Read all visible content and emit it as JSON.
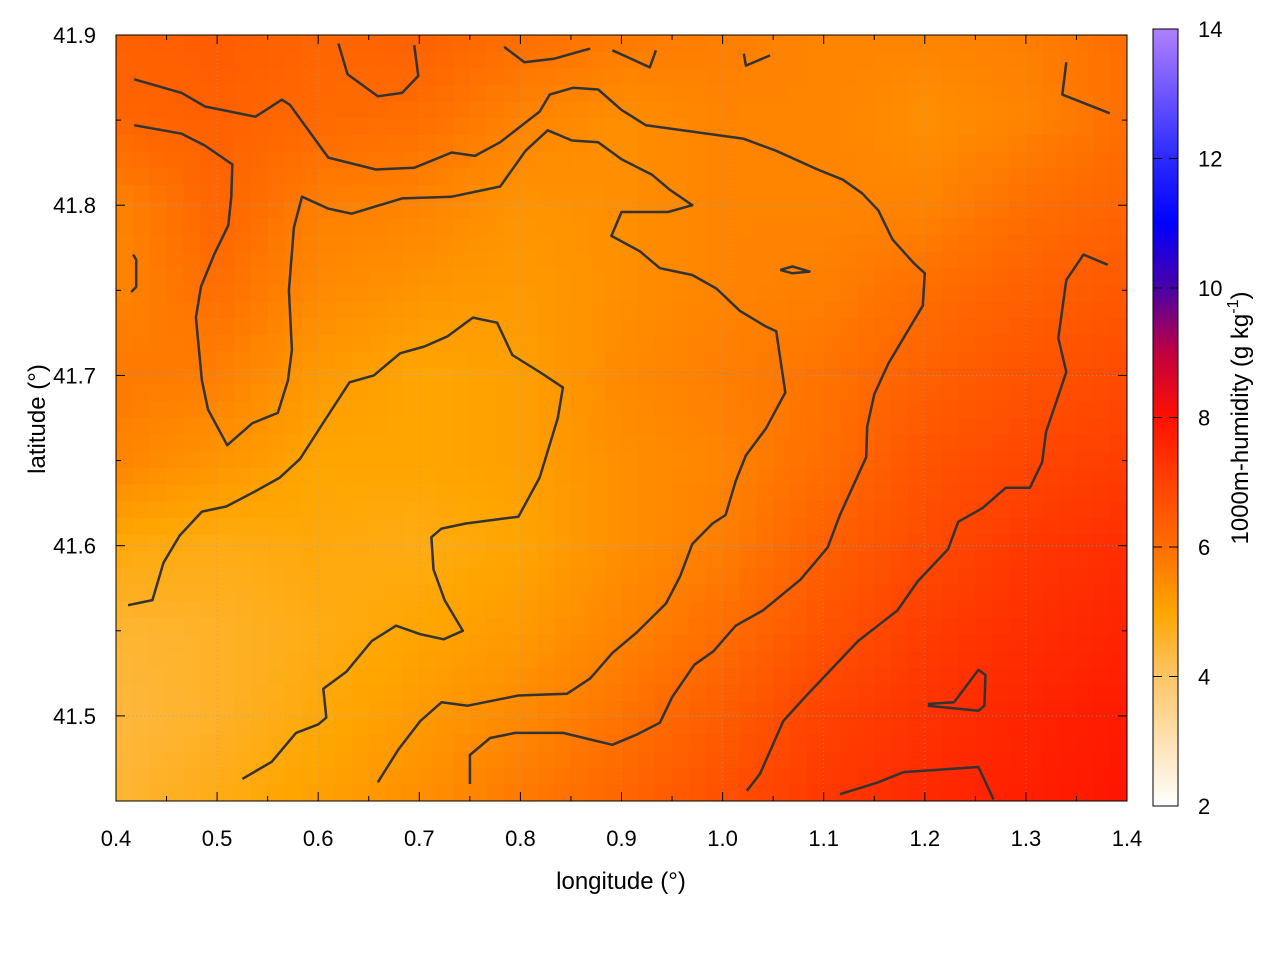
{
  "chart_data": {
    "type": "heatmap",
    "title": "",
    "xlabel": "longitude (°)",
    "ylabel": "latitude (°)",
    "colorbar_label": "1000m-humidity (g kg",
    "colorbar_label_sup": "-1",
    "colorbar_label_end": ")",
    "xlim": [
      0.4,
      1.4
    ],
    "ylim": [
      41.45,
      41.9
    ],
    "clim": [
      2,
      14
    ],
    "grid": true,
    "x_ticks": [
      "0.4",
      "0.5",
      "0.6",
      "0.7",
      "0.8",
      "0.9",
      "1.0",
      "1.1",
      "1.2",
      "1.3",
      "1.4"
    ],
    "y_ticks": [
      "41.5",
      "41.6",
      "41.7",
      "41.8",
      "41.9"
    ],
    "c_ticks": [
      "2",
      "4",
      "6",
      "8",
      "10",
      "12",
      "14"
    ],
    "palette": [
      {
        "v": 2,
        "c": "#ffffff"
      },
      {
        "v": 4,
        "c": "#fdc566"
      },
      {
        "v": 5,
        "c": "#ffa500"
      },
      {
        "v": 6,
        "c": "#ff6e00"
      },
      {
        "v": 7,
        "c": "#ff4200"
      },
      {
        "v": 8,
        "c": "#ff1000"
      },
      {
        "v": 9,
        "c": "#c00040"
      },
      {
        "v": 10,
        "c": "#4a00a8"
      },
      {
        "v": 11,
        "c": "#0000ff"
      },
      {
        "v": 12,
        "c": "#2a2aff"
      },
      {
        "v": 14,
        "c": "#b080ff"
      }
    ],
    "grid_lon": [
      0.4,
      0.5,
      0.6,
      0.7,
      0.8,
      0.9,
      1.0,
      1.1,
      1.2,
      1.3,
      1.4
    ],
    "grid_lat": [
      41.9,
      41.85,
      41.8,
      41.75,
      41.7,
      41.65,
      41.6,
      41.55,
      41.5,
      41.45
    ],
    "values": [
      [
        6.3,
        6.4,
        6.2,
        6.3,
        6.0,
        5.8,
        5.7,
        5.6,
        5.6,
        5.7,
        6.0
      ],
      [
        6.2,
        6.3,
        6.1,
        6.0,
        5.6,
        5.4,
        5.6,
        5.6,
        5.4,
        5.6,
        6.0
      ],
      [
        5.6,
        6.2,
        5.7,
        5.6,
        5.3,
        5.4,
        5.6,
        5.6,
        5.6,
        6.0,
        6.2
      ],
      [
        5.6,
        6.0,
        5.5,
        5.3,
        5.2,
        5.4,
        5.6,
        5.7,
        6.0,
        6.3,
        6.5
      ],
      [
        5.8,
        5.7,
        5.2,
        5.0,
        5.1,
        5.5,
        5.7,
        5.9,
        6.3,
        6.6,
        6.8
      ],
      [
        5.6,
        5.3,
        5.0,
        5.0,
        5.1,
        5.4,
        5.6,
        6.0,
        6.6,
        6.9,
        7.1
      ],
      [
        4.9,
        4.8,
        4.9,
        4.8,
        5.0,
        5.4,
        5.7,
        6.3,
        6.8,
        7.2,
        7.4
      ],
      [
        4.5,
        4.6,
        4.8,
        5.0,
        5.2,
        5.6,
        6.0,
        6.6,
        7.1,
        7.4,
        7.6
      ],
      [
        4.4,
        4.6,
        4.9,
        5.2,
        5.5,
        5.9,
        6.4,
        7.0,
        7.3,
        7.6,
        7.8
      ],
      [
        4.5,
        4.8,
        5.1,
        5.4,
        5.8,
        6.2,
        6.7,
        7.2,
        7.5,
        7.7,
        7.9
      ]
    ],
    "contour_color": "#333333",
    "contours": [
      [
        [
          0.418,
          41.874
        ],
        [
          0.465,
          41.866
        ],
        [
          0.488,
          41.858
        ],
        [
          0.538,
          41.852
        ],
        [
          0.564,
          41.862
        ],
        [
          0.572,
          41.859
        ],
        [
          0.61,
          41.828
        ],
        [
          0.657,
          41.821
        ],
        [
          0.695,
          41.822
        ],
        [
          0.732,
          41.831
        ],
        [
          0.755,
          41.829
        ],
        [
          0.78,
          41.837
        ],
        [
          0.819,
          41.855
        ],
        [
          0.829,
          41.865
        ],
        [
          0.852,
          41.869
        ],
        [
          0.877,
          41.868
        ],
        [
          0.9,
          41.856
        ],
        [
          0.924,
          41.847
        ],
        [
          1.021,
          41.839
        ],
        [
          1.053,
          41.832
        ],
        [
          1.094,
          41.821
        ],
        [
          1.119,
          41.815
        ],
        [
          1.138,
          41.807
        ],
        [
          1.154,
          41.797
        ],
        [
          1.168,
          41.78
        ],
        [
          1.189,
          41.766
        ],
        [
          1.2,
          41.76
        ],
        [
          1.198,
          41.741
        ],
        [
          1.185,
          41.728
        ],
        [
          1.164,
          41.707
        ],
        [
          1.15,
          41.689
        ],
        [
          1.143,
          41.67
        ],
        [
          1.142,
          41.652
        ],
        [
          1.116,
          41.618
        ],
        [
          1.104,
          41.599
        ],
        [
          1.077,
          41.58
        ],
        [
          1.04,
          41.562
        ],
        [
          1.013,
          41.553
        ],
        [
          0.991,
          41.538
        ],
        [
          0.972,
          41.53
        ],
        [
          0.95,
          41.511
        ],
        [
          0.938,
          41.496
        ],
        [
          0.915,
          41.489
        ],
        [
          0.891,
          41.483
        ],
        [
          0.842,
          41.49
        ],
        [
          0.795,
          41.49
        ],
        [
          0.77,
          41.487
        ],
        [
          0.75,
          41.477
        ],
        [
          0.75,
          41.46
        ]
      ],
      [
        [
          0.418,
          41.847
        ],
        [
          0.465,
          41.842
        ],
        [
          0.488,
          41.835
        ],
        [
          0.515,
          41.824
        ],
        [
          0.514,
          41.805
        ],
        [
          0.511,
          41.788
        ],
        [
          0.497,
          41.771
        ],
        [
          0.484,
          41.752
        ],
        [
          0.479,
          41.734
        ],
        [
          0.485,
          41.697
        ],
        [
          0.491,
          41.68
        ],
        [
          0.51,
          41.659
        ],
        [
          0.535,
          41.672
        ],
        [
          0.56,
          41.678
        ],
        [
          0.57,
          41.697
        ],
        [
          0.574,
          41.715
        ],
        [
          0.571,
          41.75
        ],
        [
          0.576,
          41.787
        ],
        [
          0.584,
          41.805
        ],
        [
          0.61,
          41.798
        ],
        [
          0.633,
          41.795
        ],
        [
          0.683,
          41.804
        ],
        [
          0.732,
          41.805
        ],
        [
          0.78,
          41.811
        ],
        [
          0.805,
          41.832
        ],
        [
          0.827,
          41.844
        ],
        [
          0.851,
          41.838
        ],
        [
          0.877,
          41.837
        ],
        [
          0.9,
          41.827
        ],
        [
          0.93,
          41.818
        ],
        [
          0.948,
          41.809
        ],
        [
          0.97,
          41.8
        ],
        [
          0.946,
          41.796
        ],
        [
          0.9,
          41.796
        ],
        [
          0.89,
          41.782
        ],
        [
          0.918,
          41.773
        ],
        [
          0.938,
          41.763
        ],
        [
          0.97,
          41.759
        ],
        [
          0.994,
          41.751
        ],
        [
          1.017,
          41.738
        ],
        [
          1.042,
          41.729
        ],
        [
          1.053,
          41.726
        ],
        [
          1.062,
          41.69
        ],
        [
          1.043,
          41.669
        ],
        [
          1.023,
          41.653
        ],
        [
          1.013,
          41.638
        ],
        [
          1.003,
          41.618
        ],
        [
          0.99,
          41.613
        ],
        [
          0.97,
          41.601
        ],
        [
          0.958,
          41.582
        ],
        [
          0.944,
          41.566
        ],
        [
          0.915,
          41.549
        ],
        [
          0.891,
          41.537
        ],
        [
          0.869,
          41.522
        ],
        [
          0.846,
          41.513
        ],
        [
          0.798,
          41.512
        ],
        [
          0.748,
          41.506
        ],
        [
          0.722,
          41.508
        ],
        [
          0.701,
          41.497
        ],
        [
          0.679,
          41.48
        ],
        [
          0.659,
          41.461
        ]
      ],
      [
        [
          0.412,
          41.565
        ],
        [
          0.436,
          41.568
        ],
        [
          0.447,
          41.59
        ],
        [
          0.463,
          41.606
        ],
        [
          0.485,
          41.62
        ],
        [
          0.509,
          41.623
        ],
        [
          0.538,
          41.632
        ],
        [
          0.562,
          41.64
        ],
        [
          0.582,
          41.651
        ],
        [
          0.608,
          41.675
        ],
        [
          0.631,
          41.696
        ],
        [
          0.655,
          41.7
        ],
        [
          0.681,
          41.713
        ],
        [
          0.705,
          41.717
        ],
        [
          0.728,
          41.723
        ],
        [
          0.753,
          41.734
        ],
        [
          0.777,
          41.731
        ],
        [
          0.792,
          41.712
        ],
        [
          0.819,
          41.702
        ],
        [
          0.842,
          41.693
        ],
        [
          0.837,
          41.675
        ],
        [
          0.819,
          41.64
        ],
        [
          0.798,
          41.617
        ],
        [
          0.746,
          41.613
        ],
        [
          0.722,
          41.61
        ],
        [
          0.712,
          41.605
        ],
        [
          0.714,
          41.586
        ],
        [
          0.725,
          41.568
        ],
        [
          0.743,
          41.55
        ],
        [
          0.724,
          41.545
        ],
        [
          0.701,
          41.548
        ],
        [
          0.677,
          41.553
        ],
        [
          0.653,
          41.544
        ],
        [
          0.628,
          41.526
        ],
        [
          0.605,
          41.516
        ],
        [
          0.608,
          41.499
        ],
        [
          0.6,
          41.495
        ],
        [
          0.578,
          41.49
        ],
        [
          0.554,
          41.473
        ],
        [
          0.525,
          41.463
        ]
      ],
      [
        [
          1.024,
          41.456
        ],
        [
          1.037,
          41.466
        ],
        [
          1.06,
          41.497
        ],
        [
          1.083,
          41.512
        ],
        [
          1.134,
          41.544
        ],
        [
          1.173,
          41.562
        ],
        [
          1.193,
          41.579
        ],
        [
          1.223,
          41.598
        ],
        [
          1.233,
          41.614
        ],
        [
          1.257,
          41.622
        ],
        [
          1.28,
          41.634
        ],
        [
          1.304,
          41.634
        ],
        [
          1.316,
          41.649
        ],
        [
          1.32,
          41.667
        ],
        [
          1.332,
          41.688
        ],
        [
          1.34,
          41.702
        ],
        [
          1.332,
          41.722
        ],
        [
          1.336,
          41.739
        ],
        [
          1.34,
          41.756
        ],
        [
          1.357,
          41.771
        ],
        [
          1.381,
          41.765
        ]
      ],
      [
        [
          1.116,
          41.454
        ],
        [
          1.154,
          41.461
        ],
        [
          1.179,
          41.467
        ],
        [
          1.253,
          41.47
        ],
        [
          1.268,
          41.451
        ]
      ],
      [
        [
          1.057,
          41.762
        ],
        [
          1.069,
          41.764
        ],
        [
          1.086,
          41.761
        ],
        [
          1.069,
          41.76
        ],
        [
          1.057,
          41.762
        ]
      ],
      [
        [
          1.203,
          41.507
        ],
        [
          1.229,
          41.508
        ],
        [
          1.253,
          41.527
        ],
        [
          1.26,
          41.524
        ],
        [
          1.259,
          41.506
        ],
        [
          1.253,
          41.503
        ],
        [
          1.203,
          41.506
        ]
      ],
      [
        [
          0.62,
          41.895
        ],
        [
          0.629,
          41.877
        ],
        [
          0.659,
          41.864
        ],
        [
          0.683,
          41.866
        ],
        [
          0.699,
          41.876
        ],
        [
          0.695,
          41.894
        ]
      ],
      [
        [
          0.784,
          41.893
        ],
        [
          0.804,
          41.884
        ],
        [
          0.833,
          41.886
        ],
        [
          0.869,
          41.892
        ]
      ],
      [
        [
          0.891,
          41.891
        ],
        [
          0.928,
          41.881
        ],
        [
          0.934,
          41.891
        ]
      ],
      [
        [
          1.021,
          41.889
        ],
        [
          1.023,
          41.882
        ],
        [
          1.047,
          41.888
        ]
      ],
      [
        [
          1.34,
          41.884
        ],
        [
          1.336,
          41.865
        ],
        [
          1.383,
          41.854
        ]
      ],
      [
        [
          0.417,
          41.771
        ],
        [
          0.42,
          41.768
        ],
        [
          0.42,
          41.752
        ],
        [
          0.415,
          41.749
        ]
      ]
    ]
  }
}
